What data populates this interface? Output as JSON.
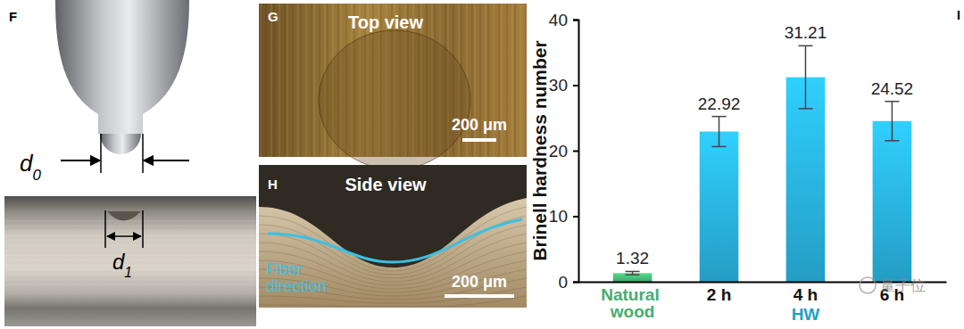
{
  "chart_data": {
    "type": "bar",
    "y_label": "Brinell hardness number",
    "categories": [
      "Natural wood",
      "2 h",
      "4 h",
      "6 h"
    ],
    "group_label": "HW",
    "values": [
      1.32,
      22.92,
      31.21,
      24.52
    ],
    "errors": [
      0.25,
      2.3,
      4.8,
      3.0
    ],
    "colors": [
      "#4cc27c",
      "#2ab8e6",
      "#2ab8e6",
      "#2ab8e6"
    ],
    "ylim": [
      0,
      40
    ],
    "yticks": [
      0,
      10,
      20,
      30,
      40
    ],
    "data_labels": true,
    "panel_label": "I"
  },
  "panels": {
    "F": {
      "label": "F",
      "d0": "d0",
      "d1": "d1"
    },
    "G": {
      "label": "G",
      "title": "Top view",
      "scale_bar": "200 μm"
    },
    "H": {
      "label": "H",
      "title": "Side view",
      "annotation": "Fiber direction",
      "scale_bar": "200 μm"
    }
  },
  "watermark": "量子位"
}
